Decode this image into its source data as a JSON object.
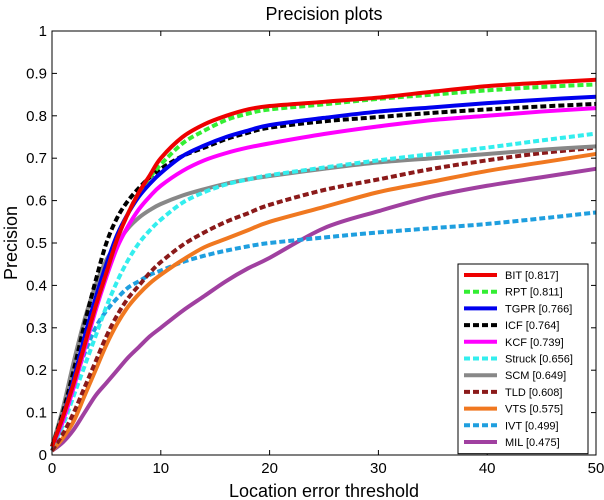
{
  "chart_data": {
    "type": "line",
    "title": "Precision plots",
    "xlabel": "Location error threshold",
    "ylabel": "Precision",
    "xlim": [
      0,
      50
    ],
    "ylim": [
      0,
      1
    ],
    "x_ticks": [
      "0",
      "10",
      "20",
      "30",
      "40",
      "50"
    ],
    "y_ticks": [
      "0",
      "0.1",
      "0.2",
      "0.3",
      "0.4",
      "0.5",
      "0.6",
      "0.7",
      "0.8",
      "0.9",
      "1"
    ],
    "legend_position": "bottom-right",
    "grid": false,
    "x": [
      0,
      1,
      2,
      3,
      4,
      5,
      6,
      7,
      8,
      9,
      10,
      12,
      14,
      16,
      18,
      20,
      25,
      30,
      35,
      40,
      45,
      50
    ],
    "series": [
      {
        "name": "BIT",
        "label": "BIT [0.817]",
        "color": "#ee0000",
        "dash": "solid",
        "values": [
          0.02,
          0.09,
          0.17,
          0.26,
          0.35,
          0.43,
          0.51,
          0.57,
          0.62,
          0.66,
          0.7,
          0.75,
          0.78,
          0.8,
          0.815,
          0.823,
          0.833,
          0.843,
          0.857,
          0.87,
          0.878,
          0.885
        ]
      },
      {
        "name": "RPT",
        "label": "RPT [0.811]",
        "color": "#33ee33",
        "dash": "dashed",
        "values": [
          0.02,
          0.09,
          0.17,
          0.26,
          0.35,
          0.43,
          0.51,
          0.57,
          0.62,
          0.655,
          0.685,
          0.735,
          0.765,
          0.79,
          0.805,
          0.815,
          0.827,
          0.84,
          0.85,
          0.86,
          0.868,
          0.874
        ]
      },
      {
        "name": "TGPR",
        "label": "TGPR [0.766]",
        "color": "#0000ee",
        "dash": "solid",
        "values": [
          0.02,
          0.09,
          0.18,
          0.28,
          0.37,
          0.45,
          0.52,
          0.57,
          0.61,
          0.64,
          0.665,
          0.705,
          0.73,
          0.75,
          0.765,
          0.778,
          0.795,
          0.81,
          0.82,
          0.83,
          0.838,
          0.845
        ]
      },
      {
        "name": "ICF",
        "label": "ICF [0.764]",
        "color": "#000000",
        "dash": "dashed",
        "values": [
          0.02,
          0.1,
          0.2,
          0.31,
          0.41,
          0.5,
          0.56,
          0.6,
          0.63,
          0.655,
          0.675,
          0.705,
          0.725,
          0.745,
          0.76,
          0.772,
          0.787,
          0.797,
          0.807,
          0.815,
          0.822,
          0.828
        ]
      },
      {
        "name": "KCF",
        "label": "KCF [0.739]",
        "color": "#ff00ff",
        "dash": "solid",
        "values": [
          0.02,
          0.08,
          0.16,
          0.25,
          0.34,
          0.42,
          0.49,
          0.54,
          0.58,
          0.61,
          0.635,
          0.67,
          0.695,
          0.712,
          0.725,
          0.735,
          0.757,
          0.775,
          0.79,
          0.8,
          0.81,
          0.818
        ]
      },
      {
        "name": "Struck",
        "label": "Struck [0.656]",
        "color": "#33eeee",
        "dash": "dashed",
        "values": [
          0.02,
          0.07,
          0.14,
          0.21,
          0.28,
          0.35,
          0.41,
          0.46,
          0.5,
          0.53,
          0.555,
          0.595,
          0.62,
          0.638,
          0.65,
          0.66,
          0.678,
          0.695,
          0.71,
          0.725,
          0.742,
          0.758
        ]
      },
      {
        "name": "SCM",
        "label": "SCM [0.649]",
        "color": "#888888",
        "dash": "solid",
        "values": [
          0.02,
          0.11,
          0.22,
          0.32,
          0.4,
          0.46,
          0.5,
          0.535,
          0.56,
          0.578,
          0.592,
          0.612,
          0.627,
          0.64,
          0.65,
          0.658,
          0.675,
          0.69,
          0.7,
          0.71,
          0.72,
          0.728
        ]
      },
      {
        "name": "TLD",
        "label": "TLD [0.608]",
        "color": "#8b1a1a",
        "dash": "dashed",
        "values": [
          0.01,
          0.05,
          0.1,
          0.16,
          0.22,
          0.28,
          0.33,
          0.37,
          0.4,
          0.43,
          0.455,
          0.495,
          0.525,
          0.55,
          0.57,
          0.59,
          0.625,
          0.65,
          0.675,
          0.695,
          0.712,
          0.725
        ]
      },
      {
        "name": "VTS",
        "label": "VTS [0.575]",
        "color": "#f07820",
        "dash": "solid",
        "values": [
          0.01,
          0.04,
          0.08,
          0.14,
          0.2,
          0.26,
          0.31,
          0.35,
          0.38,
          0.405,
          0.425,
          0.46,
          0.49,
          0.51,
          0.53,
          0.55,
          0.585,
          0.62,
          0.645,
          0.67,
          0.69,
          0.71
        ]
      },
      {
        "name": "IVT",
        "label": "IVT [0.499]",
        "color": "#1f9fdf",
        "dash": "dashed",
        "values": [
          0.01,
          0.08,
          0.17,
          0.24,
          0.3,
          0.34,
          0.37,
          0.395,
          0.41,
          0.425,
          0.435,
          0.455,
          0.47,
          0.482,
          0.492,
          0.5,
          0.513,
          0.525,
          0.535,
          0.545,
          0.558,
          0.572
        ]
      },
      {
        "name": "MIL",
        "label": "MIL [0.475]",
        "color": "#a040a0",
        "dash": "solid",
        "values": [
          0.01,
          0.03,
          0.06,
          0.1,
          0.14,
          0.17,
          0.2,
          0.23,
          0.255,
          0.28,
          0.3,
          0.34,
          0.375,
          0.41,
          0.44,
          0.465,
          0.535,
          0.575,
          0.61,
          0.635,
          0.655,
          0.675
        ]
      }
    ]
  }
}
